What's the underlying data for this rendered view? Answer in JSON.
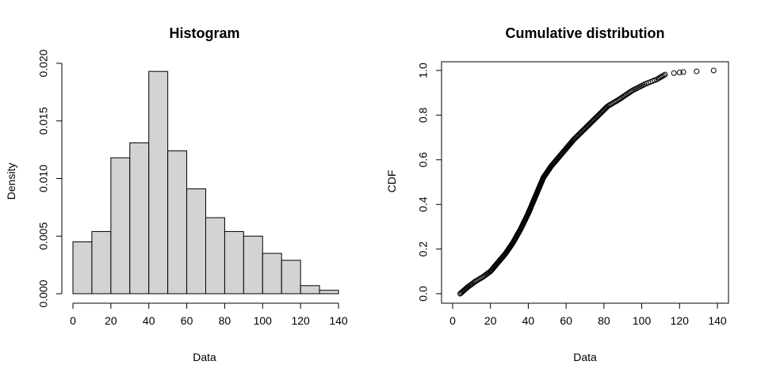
{
  "chart_data": [
    {
      "type": "bar",
      "title": "Histogram",
      "xlabel": "Data",
      "ylabel": "Density",
      "xlim": [
        0,
        140
      ],
      "ylim": [
        0,
        0.02
      ],
      "bin_width": 10,
      "bins": [
        {
          "x0": 0,
          "x1": 10,
          "density": 0.0045
        },
        {
          "x0": 10,
          "x1": 20,
          "density": 0.0054
        },
        {
          "x0": 20,
          "x1": 30,
          "density": 0.0118
        },
        {
          "x0": 30,
          "x1": 40,
          "density": 0.0131
        },
        {
          "x0": 40,
          "x1": 50,
          "density": 0.0193
        },
        {
          "x0": 50,
          "x1": 60,
          "density": 0.0124
        },
        {
          "x0": 60,
          "x1": 70,
          "density": 0.0091
        },
        {
          "x0": 70,
          "x1": 80,
          "density": 0.0066
        },
        {
          "x0": 80,
          "x1": 90,
          "density": 0.0054
        },
        {
          "x0": 90,
          "x1": 100,
          "density": 0.005
        },
        {
          "x0": 100,
          "x1": 110,
          "density": 0.0035
        },
        {
          "x0": 110,
          "x1": 120,
          "density": 0.0029
        },
        {
          "x0": 120,
          "x1": 130,
          "density": 0.0007
        },
        {
          "x0": 130,
          "x1": 140,
          "density": 0.0003
        }
      ],
      "xticks": [
        "0",
        "20",
        "40",
        "60",
        "80",
        "100",
        "120",
        "140"
      ],
      "yticks": [
        "0.000",
        "0.005",
        "0.010",
        "0.015",
        "0.020"
      ],
      "bar_fill": "#d3d3d3",
      "bar_stroke": "#000000",
      "grid": false
    },
    {
      "type": "scatter",
      "title": "Cumulative distribution",
      "xlabel": "Data",
      "ylabel": "CDF",
      "xlim": [
        0,
        140
      ],
      "ylim": [
        0,
        1.0
      ],
      "n_points": 274,
      "cdf_knots": [
        [
          4,
          0.0
        ],
        [
          8,
          0.03
        ],
        [
          12,
          0.055
        ],
        [
          16,
          0.075
        ],
        [
          20,
          0.1
        ],
        [
          24,
          0.14
        ],
        [
          28,
          0.18
        ],
        [
          32,
          0.23
        ],
        [
          36,
          0.29
        ],
        [
          40,
          0.36
        ],
        [
          44,
          0.44
        ],
        [
          48,
          0.52
        ],
        [
          52,
          0.57
        ],
        [
          56,
          0.61
        ],
        [
          60,
          0.65
        ],
        [
          64,
          0.69
        ],
        [
          70,
          0.74
        ],
        [
          76,
          0.79
        ],
        [
          82,
          0.84
        ],
        [
          88,
          0.87
        ],
        [
          95,
          0.91
        ],
        [
          102,
          0.94
        ],
        [
          108,
          0.96
        ],
        [
          113,
          0.985
        ],
        [
          138,
          1.0
        ]
      ],
      "tail_points": [
        {
          "x": 117,
          "y": 0.988
        },
        {
          "x": 120,
          "y": 0.991
        },
        {
          "x": 122,
          "y": 0.993
        },
        {
          "x": 129,
          "y": 0.996
        },
        {
          "x": 138,
          "y": 1.0
        }
      ],
      "xticks": [
        "0",
        "20",
        "40",
        "60",
        "80",
        "100",
        "120",
        "140"
      ],
      "yticks": [
        "0.0",
        "0.2",
        "0.4",
        "0.6",
        "0.8",
        "1.0"
      ],
      "marker": "open-circle",
      "grid": false
    }
  ]
}
